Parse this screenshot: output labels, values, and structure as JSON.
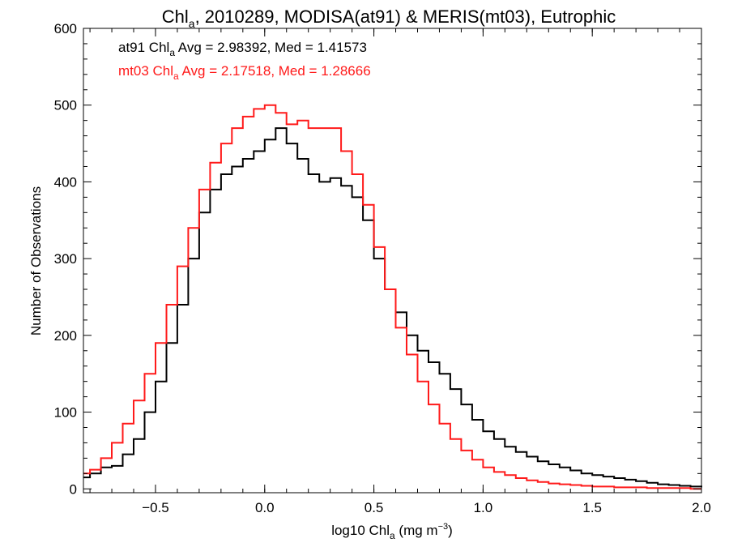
{
  "chart_data": {
    "type": "histogram",
    "title": {
      "base": "Chl",
      "sub": "a",
      "rest": ", 2010289, MODISA(at91) & MERIS(mt03), Eutrophic"
    },
    "xlabel": {
      "base": "log10 Chl",
      "sub": "a",
      "mid": " (mg m",
      "sup": "−3",
      "end": ")"
    },
    "ylabel": "Number of Observations",
    "xlim": [
      -0.83,
      2.0
    ],
    "ylim": [
      -5,
      600
    ],
    "xticks": [
      -0.5,
      0.0,
      0.5,
      1.0,
      1.5,
      2.0
    ],
    "xtick_labels": [
      "−0.5",
      "0.0",
      "0.5",
      "1.0",
      "1.5",
      "2.0"
    ],
    "yticks": [
      0,
      100,
      200,
      300,
      400,
      500,
      600
    ],
    "ytick_labels": [
      "0",
      "100",
      "200",
      "300",
      "400",
      "500",
      "600"
    ],
    "annotations": [
      {
        "prefix": "at91 Chl",
        "sub": "a",
        "rest": " Avg = 2.98392, Med = 1.41573",
        "color": "#000000"
      },
      {
        "prefix": "mt03 Chl",
        "sub": "a",
        "rest": " Avg = 2.17518, Med = 1.28666",
        "color": "#ff1a1a"
      }
    ],
    "series": [
      {
        "color": "#000000",
        "x": [
          -0.83,
          -0.8,
          -0.75,
          -0.7,
          -0.65,
          -0.6,
          -0.55,
          -0.5,
          -0.45,
          -0.4,
          -0.35,
          -0.3,
          -0.25,
          -0.2,
          -0.15,
          -0.1,
          -0.05,
          0.0,
          0.05,
          0.1,
          0.15,
          0.2,
          0.25,
          0.3,
          0.35,
          0.4,
          0.45,
          0.5,
          0.55,
          0.6,
          0.65,
          0.7,
          0.75,
          0.8,
          0.85,
          0.9,
          0.95,
          1.0,
          1.05,
          1.1,
          1.15,
          1.2,
          1.25,
          1.3,
          1.35,
          1.4,
          1.45,
          1.5,
          1.55,
          1.6,
          1.65,
          1.7,
          1.75,
          1.8,
          1.85,
          1.9,
          1.95,
          2.0
        ],
        "y": [
          15,
          20,
          28,
          30,
          45,
          65,
          100,
          140,
          190,
          240,
          300,
          360,
          390,
          410,
          420,
          430,
          440,
          455,
          470,
          450,
          430,
          410,
          400,
          405,
          395,
          380,
          350,
          300,
          260,
          230,
          200,
          180,
          165,
          150,
          130,
          110,
          90,
          75,
          65,
          55,
          48,
          42,
          36,
          32,
          28,
          24,
          20,
          18,
          16,
          14,
          12,
          10,
          8,
          6,
          5,
          4,
          3,
          2
        ]
      },
      {
        "color": "#ff1a1a",
        "x": [
          -0.83,
          -0.8,
          -0.75,
          -0.7,
          -0.65,
          -0.6,
          -0.55,
          -0.5,
          -0.45,
          -0.4,
          -0.35,
          -0.3,
          -0.25,
          -0.2,
          -0.15,
          -0.1,
          -0.05,
          0.0,
          0.05,
          0.1,
          0.15,
          0.2,
          0.25,
          0.3,
          0.35,
          0.4,
          0.45,
          0.5,
          0.55,
          0.6,
          0.65,
          0.7,
          0.75,
          0.8,
          0.85,
          0.9,
          0.95,
          1.0,
          1.05,
          1.1,
          1.15,
          1.2,
          1.25,
          1.3,
          1.35,
          1.4,
          1.45,
          1.5,
          1.55,
          1.6,
          1.65,
          1.7,
          1.75,
          1.8,
          1.85,
          1.9,
          1.95,
          2.0
        ],
        "y": [
          20,
          25,
          40,
          60,
          85,
          115,
          150,
          190,
          240,
          290,
          340,
          390,
          425,
          450,
          470,
          485,
          495,
          500,
          490,
          475,
          480,
          470,
          470,
          470,
          440,
          410,
          370,
          315,
          260,
          210,
          175,
          140,
          110,
          85,
          65,
          50,
          38,
          28,
          22,
          18,
          14,
          11,
          9,
          7,
          6,
          5,
          4,
          3,
          3,
          2,
          2,
          2,
          1,
          1,
          1,
          1,
          0,
          0
        ]
      }
    ],
    "grid": false,
    "legend": "top-left text annotations"
  }
}
